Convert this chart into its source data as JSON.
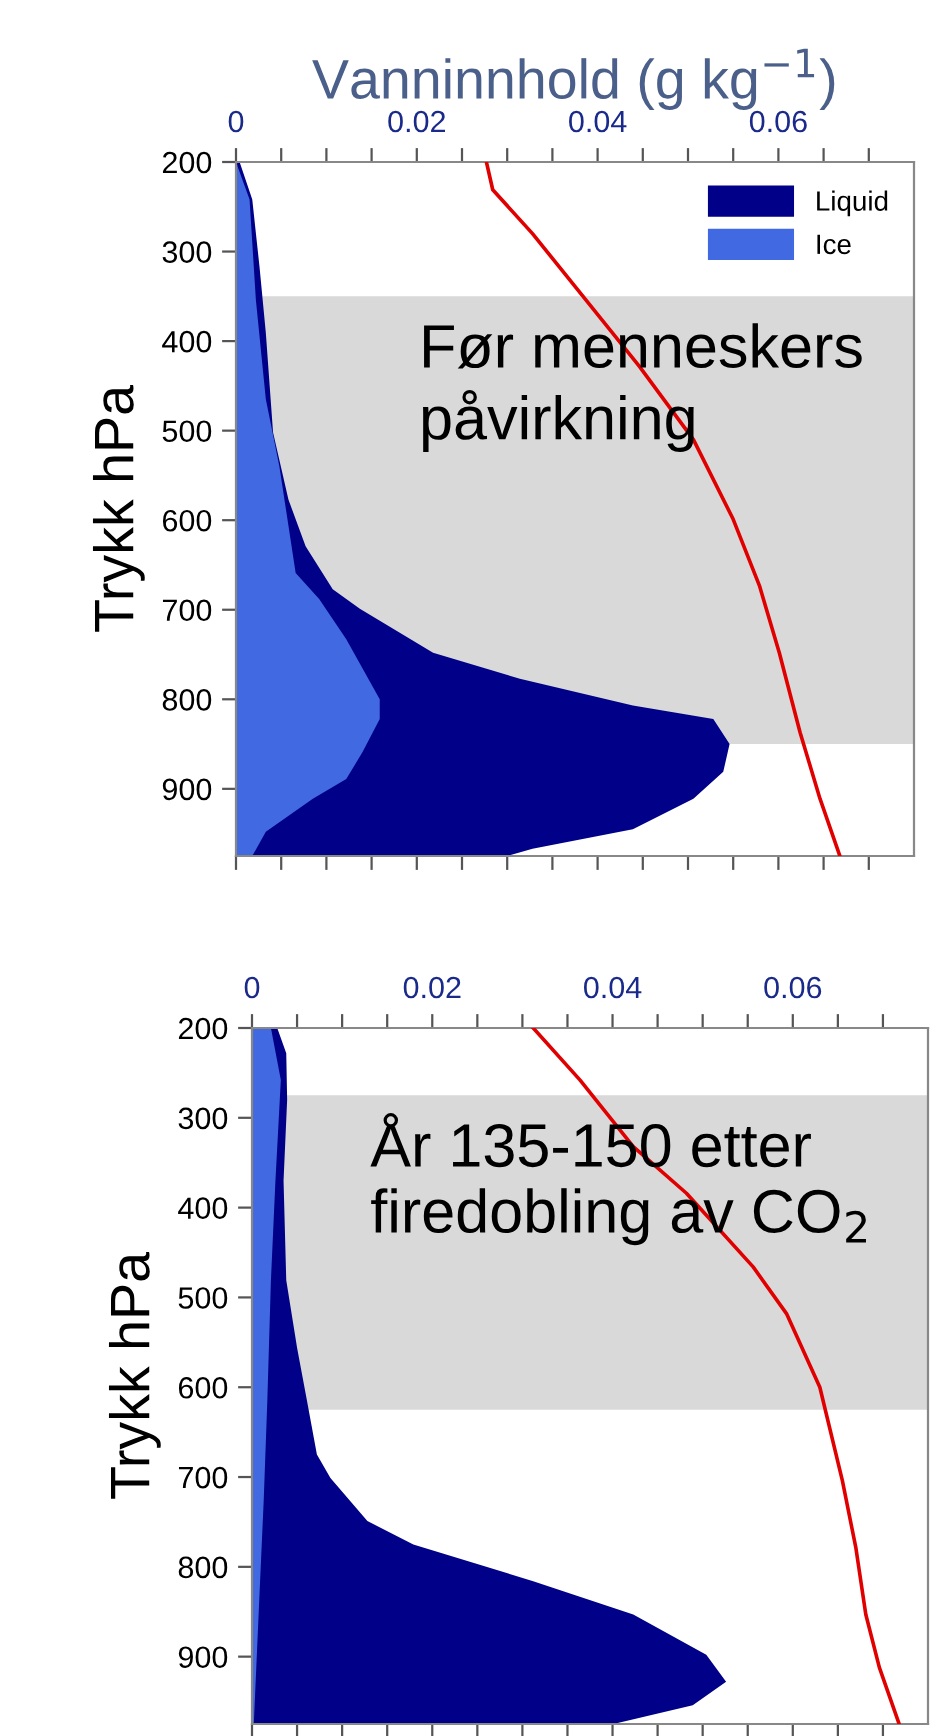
{
  "chart_data": [
    {
      "type": "area",
      "orientation": "horizontal",
      "xlabel": "Vanninnhold (g kg$^{−1}$)",
      "ylabel": "Trykk hPa",
      "legend": "top right",
      "xlim": [
        0,
        0.075
      ],
      "ylim": [
        975,
        200
      ],
      "xticks": [
        0,
        {
          "value": 0.005,
          "label": null
        },
        {
          "value": 0.01,
          "label": null
        },
        {
          "value": 0.015,
          "label": null
        },
        0.02,
        {
          "value": 0.025,
          "label": null
        },
        {
          "value": 0.03,
          "label": null
        },
        {
          "value": 0.035,
          "label": null
        },
        0.04,
        {
          "value": 0.045,
          "label": null
        },
        {
          "value": 0.05,
          "label": null
        },
        {
          "value": 0.055,
          "label": null
        },
        0.06,
        {
          "value": 0.065,
          "label": null
        },
        {
          "value": 0.07,
          "label": null
        }
      ],
      "yticks": [
        200,
        300,
        400,
        500,
        600,
        700,
        800,
        900
      ],
      "bands": [
        {
          "axis": "y",
          "from": 350,
          "to": 850,
          "label": "Før menneskers påvirkning",
          "color": "#d9d9d9"
        }
      ],
      "series": [
        {
          "name": "Liquid",
          "color": "#000088",
          "x": [
            200,
            242,
            317,
            391,
            502,
            577,
            629,
            677,
            699,
            748,
            777,
            807,
            822,
            850,
            881,
            911,
            945,
            967,
            975
          ],
          "values": [
            0.0004,
            0.0018,
            0.0026,
            0.0033,
            0.0041,
            0.0058,
            0.0077,
            0.0107,
            0.0137,
            0.0218,
            0.0314,
            0.0439,
            0.0528,
            0.0546,
            0.0539,
            0.0506,
            0.0439,
            0.0328,
            0.03
          ]
        },
        {
          "name": "Ice",
          "color": "#4169e1",
          "x": [
            200,
            242,
            354,
            465,
            540,
            659,
            688,
            733,
            800,
            822,
            859,
            889,
            911,
            948,
            975
          ],
          "values": [
            0,
            0.0015,
            0.0022,
            0.0033,
            0.0048,
            0.0066,
            0.0092,
            0.0122,
            0.0159,
            0.0159,
            0.014,
            0.0122,
            0.0085,
            0.0033,
            0.0018
          ]
        },
        {
          "type": "line",
          "color": "#e00000",
          "x": [
            200,
            231,
            280,
            354,
            428,
            510,
            599,
            673,
            748,
            837,
            911,
            975
          ],
          "values": [
            0.0277,
            0.0284,
            0.0328,
            0.0387,
            0.0446,
            0.0506,
            0.055,
            0.0579,
            0.0601,
            0.0624,
            0.0646,
            0.0668
          ]
        }
      ]
    },
    {
      "type": "area",
      "orientation": "horizontal",
      "ylabel": "Trykk hPa",
      "xlim": [
        0,
        0.075
      ],
      "ylim": [
        975,
        200
      ],
      "xticks": [
        0,
        {
          "value": 0.005,
          "label": null
        },
        {
          "value": 0.01,
          "label": null
        },
        {
          "value": 0.015,
          "label": null
        },
        0.02,
        {
          "value": 0.025,
          "label": null
        },
        {
          "value": 0.03,
          "label": null
        },
        {
          "value": 0.035,
          "label": null
        },
        0.04,
        {
          "value": 0.045,
          "label": null
        },
        {
          "value": 0.05,
          "label": null
        },
        {
          "value": 0.055,
          "label": null
        },
        0.06,
        {
          "value": 0.065,
          "label": null
        },
        {
          "value": 0.07,
          "label": null
        }
      ],
      "yticks": [
        200,
        300,
        400,
        500,
        600,
        700,
        800,
        900
      ],
      "bands": [
        {
          "axis": "y",
          "from": 275,
          "to": 625,
          "label": "År 135-150 etter firedobling av CO$_{2}$",
          "color": "#d9d9d9"
        }
      ],
      "series": [
        {
          "color": "#000088",
          "x": [
            200,
            228,
            280,
            370,
            481,
            556,
            615,
            675,
            701,
            749,
            775,
            816,
            853,
            898,
            928,
            954,
            975
          ],
          "values": [
            0.0028,
            0.0038,
            0.0039,
            0.0035,
            0.0038,
            0.005,
            0.0061,
            0.0072,
            0.0087,
            0.0128,
            0.0179,
            0.0312,
            0.0423,
            0.0504,
            0.0526,
            0.0489,
            0.0401
          ]
        },
        {
          "color": "#4169e1",
          "x": [
            200,
            258,
            370,
            481,
            615,
            726,
            838,
            975
          ],
          "values": [
            0.0021,
            0.0032,
            0.0026,
            0.0021,
            0.0017,
            0.0013,
            0.0008,
            0.0002
          ]
        },
        {
          "type": "line",
          "color": "#e00000",
          "x": [
            200,
            258,
            332,
            384,
            466,
            518,
            600,
            704,
            779,
            853,
            912,
            975
          ],
          "values": [
            0.0312,
            0.0364,
            0.0423,
            0.0482,
            0.0556,
            0.0593,
            0.063,
            0.0655,
            0.067,
            0.0681,
            0.0696,
            0.0718
          ]
        }
      ]
    }
  ]
}
